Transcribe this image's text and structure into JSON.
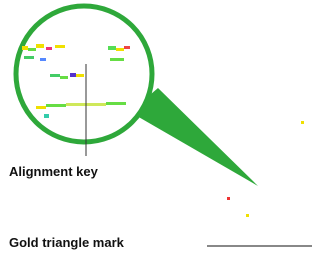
{
  "labels": {
    "alignment_key": "Alignment key",
    "gold_triangle_mark": "Gold triangle mark"
  }
}
